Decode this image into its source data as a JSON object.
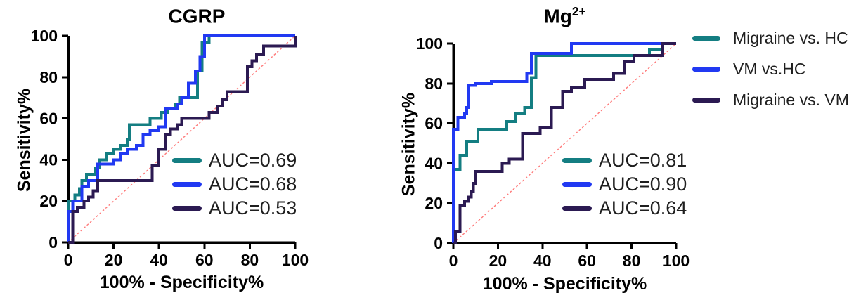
{
  "colors": {
    "teal": "#147E82",
    "blue": "#2139F2",
    "purple": "#2B1A52",
    "diagonal_red": "#FF7B7B",
    "axis_black": "#000000"
  },
  "legend": {
    "items": [
      {
        "label": "Migraine vs. HC",
        "color_key": "teal"
      },
      {
        "label": "VM vs.HC",
        "color_key": "blue"
      },
      {
        "label": "Migraine vs. VM",
        "color_key": "purple"
      }
    ]
  },
  "chart_data": [
    {
      "id": "cgrp",
      "type": "line",
      "subtype": "roc-step",
      "title": "CGRP",
      "title_sup": "",
      "xlabel": "100% - Specificity%",
      "ylabel": "Sensitivity%",
      "xlim": [
        0,
        100
      ],
      "ylim": [
        0,
        100
      ],
      "xticks": [
        0,
        20,
        40,
        60,
        80,
        100
      ],
      "yticks": [
        0,
        20,
        40,
        60,
        80,
        100
      ],
      "grid": false,
      "diagonal_reference": true,
      "legend_position": "inside-lower-right",
      "series": [
        {
          "name": "Migraine vs. HC",
          "auc": 0.69,
          "auc_label": "AUC=0.69",
          "color_key": "teal",
          "points": [
            [
              0,
              0
            ],
            [
              0,
              20
            ],
            [
              3,
              20
            ],
            [
              3,
              23
            ],
            [
              5,
              23
            ],
            [
              5,
              26
            ],
            [
              6,
              26
            ],
            [
              6,
              30
            ],
            [
              8,
              30
            ],
            [
              8,
              33
            ],
            [
              12,
              33
            ],
            [
              12,
              36
            ],
            [
              14,
              36
            ],
            [
              14,
              40
            ],
            [
              17,
              40
            ],
            [
              17,
              43
            ],
            [
              20,
              43
            ],
            [
              20,
              45
            ],
            [
              23,
              45
            ],
            [
              23,
              47
            ],
            [
              26,
              47
            ],
            [
              26,
              50
            ],
            [
              27,
              50
            ],
            [
              27,
              57
            ],
            [
              36,
              57
            ],
            [
              36,
              60
            ],
            [
              41,
              60
            ],
            [
              41,
              63
            ],
            [
              44,
              63
            ],
            [
              44,
              65
            ],
            [
              47,
              65
            ],
            [
              47,
              67
            ],
            [
              49,
              67
            ],
            [
              49,
              70
            ],
            [
              57,
              70
            ],
            [
              57,
              83
            ],
            [
              59,
              83
            ],
            [
              59,
              97
            ],
            [
              62,
              97
            ],
            [
              62,
              100
            ],
            [
              100,
              100
            ]
          ]
        },
        {
          "name": "VM vs.HC",
          "auc": 0.68,
          "auc_label": "AUC=0.68",
          "color_key": "blue",
          "points": [
            [
              0,
              0
            ],
            [
              0,
              15
            ],
            [
              2,
              15
            ],
            [
              2,
              20
            ],
            [
              6,
              20
            ],
            [
              6,
              27
            ],
            [
              9,
              27
            ],
            [
              9,
              30
            ],
            [
              13,
              30
            ],
            [
              13,
              38
            ],
            [
              20,
              38
            ],
            [
              20,
              40
            ],
            [
              23,
              40
            ],
            [
              23,
              43
            ],
            [
              26,
              43
            ],
            [
              26,
              45
            ],
            [
              30,
              45
            ],
            [
              30,
              47
            ],
            [
              33,
              47
            ],
            [
              33,
              52
            ],
            [
              36,
              52
            ],
            [
              36,
              54
            ],
            [
              40,
              54
            ],
            [
              40,
              56
            ],
            [
              43,
              56
            ],
            [
              43,
              65
            ],
            [
              48,
              65
            ],
            [
              48,
              67
            ],
            [
              50,
              67
            ],
            [
              50,
              70
            ],
            [
              53,
              70
            ],
            [
              53,
              77
            ],
            [
              56,
              77
            ],
            [
              56,
              83
            ],
            [
              58,
              83
            ],
            [
              58,
              90
            ],
            [
              60,
              90
            ],
            [
              60,
              100
            ],
            [
              100,
              100
            ]
          ]
        },
        {
          "name": "Migraine vs. VM",
          "auc": 0.53,
          "auc_label": "AUC=0.53",
          "color_key": "purple",
          "points": [
            [
              0,
              0
            ],
            [
              2,
              0
            ],
            [
              2,
              15
            ],
            [
              4,
              15
            ],
            [
              4,
              17
            ],
            [
              7,
              17
            ],
            [
              7,
              20
            ],
            [
              9,
              20
            ],
            [
              9,
              22
            ],
            [
              11,
              22
            ],
            [
              11,
              25
            ],
            [
              13,
              25
            ],
            [
              13,
              30
            ],
            [
              37,
              30
            ],
            [
              37,
              37
            ],
            [
              40,
              37
            ],
            [
              40,
              45
            ],
            [
              43,
              45
            ],
            [
              43,
              52
            ],
            [
              45,
              52
            ],
            [
              45,
              55
            ],
            [
              48,
              55
            ],
            [
              48,
              57
            ],
            [
              50,
              57
            ],
            [
              50,
              60
            ],
            [
              62,
              60
            ],
            [
              62,
              63
            ],
            [
              66,
              63
            ],
            [
              66,
              66
            ],
            [
              68,
              66
            ],
            [
              68,
              69
            ],
            [
              70,
              69
            ],
            [
              70,
              73
            ],
            [
              79,
              73
            ],
            [
              79,
              85
            ],
            [
              81,
              85
            ],
            [
              81,
              88
            ],
            [
              83,
              88
            ],
            [
              83,
              91
            ],
            [
              86,
              91
            ],
            [
              86,
              95
            ],
            [
              100,
              95
            ],
            [
              100,
              100
            ]
          ]
        }
      ]
    },
    {
      "id": "mg",
      "type": "line",
      "subtype": "roc-step",
      "title": "Mg",
      "title_sup": "2+",
      "xlabel": "100% - Specificity%",
      "ylabel": "Sensitivity%",
      "xlim": [
        0,
        100
      ],
      "ylim": [
        0,
        100
      ],
      "xticks": [
        0,
        20,
        40,
        60,
        80,
        100
      ],
      "yticks": [
        0,
        20,
        40,
        60,
        80,
        100
      ],
      "grid": false,
      "diagonal_reference": true,
      "legend_position": "inside-lower-right",
      "series": [
        {
          "name": "Migraine vs. HC",
          "auc": 0.81,
          "auc_label": "AUC=0.81",
          "color_key": "teal",
          "points": [
            [
              0,
              0
            ],
            [
              0,
              37
            ],
            [
              3,
              37
            ],
            [
              3,
              44
            ],
            [
              6,
              44
            ],
            [
              6,
              51
            ],
            [
              11,
              51
            ],
            [
              11,
              57
            ],
            [
              24,
              57
            ],
            [
              24,
              61
            ],
            [
              28,
              61
            ],
            [
              28,
              65
            ],
            [
              32,
              65
            ],
            [
              32,
              68
            ],
            [
              35,
              68
            ],
            [
              35,
              83
            ],
            [
              37,
              83
            ],
            [
              37,
              94
            ],
            [
              88,
              94
            ],
            [
              88,
              97
            ],
            [
              94,
              97
            ],
            [
              94,
              100
            ],
            [
              100,
              100
            ]
          ]
        },
        {
          "name": "VM vs.HC",
          "auc": 0.9,
          "auc_label": "AUC=0.90",
          "color_key": "blue",
          "points": [
            [
              0,
              0
            ],
            [
              0,
              57
            ],
            [
              2,
              57
            ],
            [
              2,
              63
            ],
            [
              5,
              63
            ],
            [
              5,
              65
            ],
            [
              6,
              65
            ],
            [
              6,
              68
            ],
            [
              7,
              68
            ],
            [
              7,
              79
            ],
            [
              10,
              79
            ],
            [
              10,
              80
            ],
            [
              17,
              80
            ],
            [
              17,
              81
            ],
            [
              33,
              81
            ],
            [
              33,
              85
            ],
            [
              35,
              85
            ],
            [
              35,
              95
            ],
            [
              53,
              95
            ],
            [
              53,
              100
            ],
            [
              100,
              100
            ]
          ]
        },
        {
          "name": "Migraine vs. VM",
          "auc": 0.64,
          "auc_label": "AUC=0.64",
          "color_key": "purple",
          "points": [
            [
              0,
              0
            ],
            [
              1,
              0
            ],
            [
              1,
              6
            ],
            [
              3,
              6
            ],
            [
              3,
              19
            ],
            [
              5,
              19
            ],
            [
              5,
              21
            ],
            [
              7,
              21
            ],
            [
              7,
              23
            ],
            [
              8,
              23
            ],
            [
              8,
              26
            ],
            [
              9,
              26
            ],
            [
              9,
              30
            ],
            [
              10,
              30
            ],
            [
              10,
              36
            ],
            [
              22,
              36
            ],
            [
              22,
              40
            ],
            [
              25,
              40
            ],
            [
              25,
              42
            ],
            [
              31,
              42
            ],
            [
              31,
              55
            ],
            [
              39,
              55
            ],
            [
              39,
              58
            ],
            [
              44,
              58
            ],
            [
              44,
              68
            ],
            [
              49,
              68
            ],
            [
              49,
              76
            ],
            [
              53,
              76
            ],
            [
              53,
              78
            ],
            [
              59,
              78
            ],
            [
              59,
              82
            ],
            [
              72,
              82
            ],
            [
              72,
              85
            ],
            [
              77,
              85
            ],
            [
              77,
              91
            ],
            [
              81,
              91
            ],
            [
              81,
              94
            ],
            [
              94,
              94
            ],
            [
              94,
              100
            ],
            [
              100,
              100
            ]
          ]
        }
      ]
    }
  ]
}
